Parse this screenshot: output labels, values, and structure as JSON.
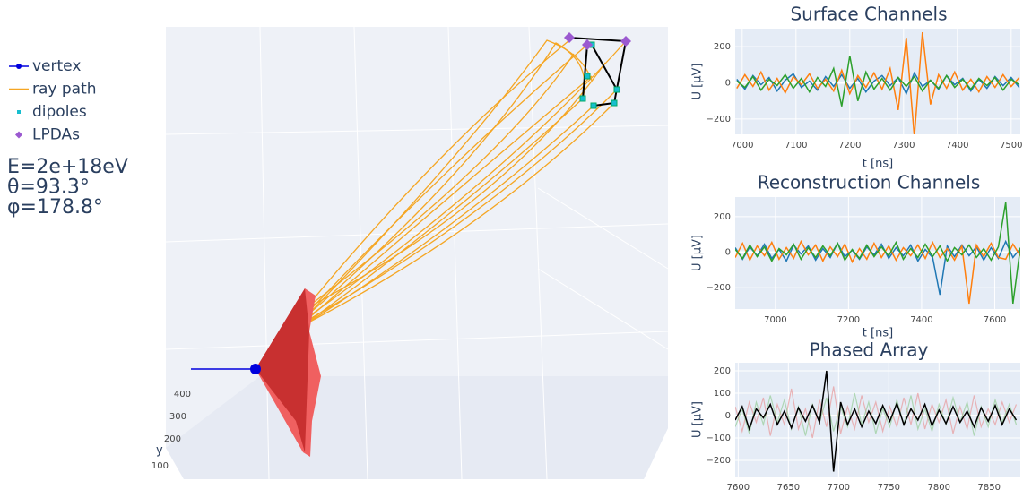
{
  "legend": [
    {
      "name": "vertex",
      "color": "#0000dd"
    },
    {
      "name": "ray path",
      "color": "#f5a623"
    },
    {
      "name": "dipoles",
      "color": "#17becf"
    },
    {
      "name": "LPDAs",
      "color": "#9b59d0"
    }
  ],
  "info": [
    "E=2e+18eV",
    "θ=93.3°",
    "φ=178.8°"
  ],
  "scene": {
    "yaxis_title": "y",
    "yticks": [
      400,
      300,
      200,
      100
    ]
  },
  "chart_data": [
    {
      "type": "line",
      "title": "Surface Channels",
      "xlabel": "t [ns]",
      "ylabel": "U [µV]",
      "xlim": [
        6987,
        7517
      ],
      "ylim": [
        -285,
        300
      ],
      "xticks": [
        7000,
        7100,
        7200,
        7300,
        7400,
        7500
      ],
      "yticks": [
        {
          "value": -200,
          "label": "−200"
        },
        0,
        200
      ],
      "x": [
        6990,
        7005,
        7020,
        7035,
        7050,
        7065,
        7080,
        7095,
        7110,
        7125,
        7140,
        7155,
        7170,
        7185,
        7200,
        7215,
        7230,
        7245,
        7260,
        7275,
        7290,
        7305,
        7320,
        7335,
        7350,
        7365,
        7380,
        7395,
        7410,
        7425,
        7440,
        7455,
        7470,
        7485,
        7500,
        7515
      ],
      "series": [
        {
          "color": "#1f77b4",
          "values": [
            20,
            -35,
            40,
            -10,
            30,
            -45,
            15,
            50,
            -25,
            10,
            -40,
            35,
            -20,
            45,
            -30,
            25,
            -50,
            10,
            40,
            -15,
            30,
            -60,
            55,
            -20,
            15,
            -35,
            40,
            -10,
            25,
            -45,
            20,
            -30,
            35,
            -15,
            30,
            -25
          ]
        },
        {
          "color": "#ff7f0e",
          "values": [
            -30,
            45,
            -20,
            60,
            -40,
            25,
            -55,
            35,
            -10,
            50,
            -30,
            20,
            -45,
            70,
            -60,
            40,
            -25,
            55,
            -35,
            80,
            -150,
            250,
            -300,
            280,
            -120,
            45,
            -30,
            60,
            -40,
            20,
            -50,
            35,
            -25,
            45,
            -20,
            30
          ]
        },
        {
          "color": "#2ca02c",
          "values": [
            10,
            -25,
            35,
            -40,
            20,
            -15,
            45,
            -30,
            25,
            -50,
            30,
            -20,
            80,
            -130,
            150,
            -100,
            60,
            -35,
            25,
            -40,
            30,
            -20,
            35,
            -45,
            15,
            -30,
            40,
            -25,
            20,
            -35,
            25,
            -15,
            30,
            -40,
            20,
            -10
          ]
        }
      ]
    },
    {
      "type": "line",
      "title": "Reconstruction Channels",
      "xlabel": "t [ns]",
      "ylabel": "U [µV]",
      "xlim": [
        6890,
        7670
      ],
      "ylim": [
        -320,
        310
      ],
      "xticks": [
        7000,
        7200,
        7400,
        7600
      ],
      "yticks": [
        {
          "value": -200,
          "label": "−200"
        },
        0,
        200
      ],
      "x": [
        6890,
        6910,
        6930,
        6950,
        6970,
        6990,
        7010,
        7030,
        7050,
        7070,
        7090,
        7110,
        7130,
        7150,
        7170,
        7190,
        7210,
        7230,
        7250,
        7270,
        7290,
        7310,
        7330,
        7350,
        7370,
        7390,
        7410,
        7430,
        7450,
        7470,
        7490,
        7510,
        7530,
        7550,
        7570,
        7590,
        7610,
        7630,
        7650,
        7670
      ],
      "series": [
        {
          "color": "#1f77b4",
          "values": [
            25,
            -40,
            30,
            -20,
            45,
            -35,
            15,
            -50,
            40,
            -10,
            35,
            -45,
            20,
            -30,
            50,
            -25,
            10,
            -40,
            30,
            -15,
            45,
            -35,
            25,
            -20,
            40,
            -50,
            15,
            -30,
            -240,
            35,
            -25,
            40,
            -20,
            30,
            -45,
            25,
            -35,
            60,
            -30,
            20
          ]
        },
        {
          "color": "#ff7f0e",
          "values": [
            -30,
            50,
            -45,
            35,
            -20,
            55,
            -40,
            25,
            -35,
            60,
            -15,
            40,
            -50,
            30,
            -25,
            45,
            -55,
            20,
            -40,
            50,
            -30,
            35,
            -45,
            25,
            -20,
            40,
            -35,
            55,
            -30,
            20,
            -45,
            35,
            -290,
            40,
            -25,
            50,
            -30,
            -40,
            45,
            -20
          ]
        },
        {
          "color": "#2ca02c",
          "values": [
            15,
            -35,
            40,
            -25,
            30,
            -50,
            20,
            -15,
            45,
            -40,
            25,
            -30,
            35,
            -20,
            50,
            -45,
            15,
            -35,
            40,
            -25,
            30,
            -20,
            55,
            -40,
            20,
            -30,
            45,
            -25,
            35,
            -50,
            25,
            -15,
            40,
            -30,
            20,
            -45,
            30,
            280,
            -290,
            25
          ]
        }
      ]
    },
    {
      "type": "line",
      "title": "Phased Array",
      "ylabel": "U [µV]",
      "xlim": [
        7597,
        7881
      ],
      "ylim": [
        -272,
        236
      ],
      "xticks": [
        7600,
        7650,
        7700,
        7750,
        7800,
        7850
      ],
      "yticks": [
        {
          "value": -200,
          "label": "−200"
        },
        {
          "value": -100,
          "label": "−100"
        },
        0,
        100,
        200
      ],
      "x": [
        7597,
        7604,
        7611,
        7618,
        7625,
        7632,
        7639,
        7646,
        7653,
        7660,
        7667,
        7674,
        7681,
        7688,
        7695,
        7702,
        7709,
        7716,
        7723,
        7730,
        7737,
        7744,
        7751,
        7758,
        7765,
        7772,
        7779,
        7786,
        7793,
        7800,
        7807,
        7814,
        7821,
        7828,
        7835,
        7842,
        7849,
        7856,
        7863,
        7870,
        7877
      ],
      "series": [
        {
          "color": "#e88a8a",
          "faded": true,
          "values": [
            40,
            -70,
            60,
            -30,
            80,
            -90,
            50,
            -40,
            120,
            -60,
            30,
            -100,
            70,
            -50,
            130,
            -80,
            40,
            -60,
            90,
            -30,
            60,
            -70,
            40,
            -50,
            80,
            -40,
            100,
            -60,
            50,
            -30,
            70,
            -80,
            40,
            -60,
            90,
            -50,
            30,
            -40,
            60,
            -30,
            50
          ]
        },
        {
          "color": "#88c888",
          "faded": true,
          "values": [
            -50,
            30,
            -80,
            60,
            -40,
            90,
            -30,
            70,
            -60,
            40,
            -90,
            50,
            -30,
            80,
            -70,
            40,
            -50,
            100,
            -40,
            60,
            -80,
            30,
            -50,
            70,
            -40,
            90,
            -60,
            30,
            -70,
            50,
            -40,
            80,
            -30,
            60,
            -90,
            40,
            -50,
            70,
            -30,
            50,
            -40
          ]
        },
        {
          "color": "#000000",
          "values": [
            -20,
            40,
            -60,
            30,
            -10,
            50,
            -40,
            20,
            -55,
            35,
            -25,
            45,
            -30,
            200,
            -250,
            60,
            -40,
            30,
            -50,
            20,
            -35,
            45,
            -25,
            55,
            -40,
            30,
            -20,
            50,
            -45,
            25,
            -35,
            40,
            -30,
            20,
            -50,
            35,
            -25,
            45,
            -40,
            30,
            -20
          ]
        }
      ]
    }
  ]
}
